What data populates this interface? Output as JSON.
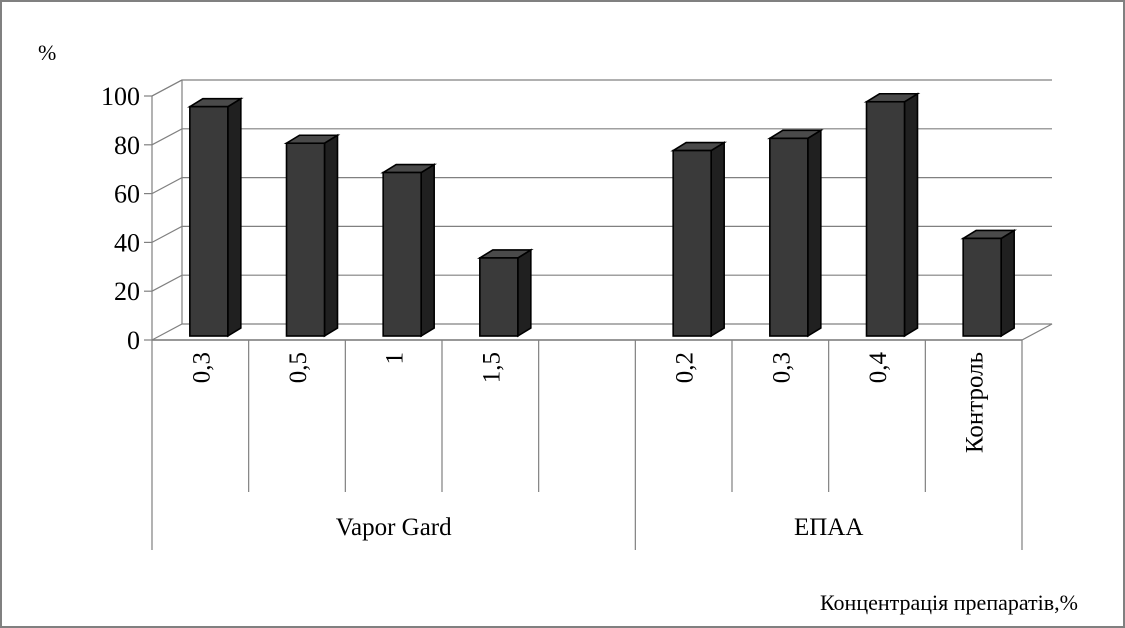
{
  "chart_data": {
    "type": "bar",
    "ylabel": "%",
    "xlabel": "Концентрація препаратів,%",
    "ylim": [
      0,
      100
    ],
    "yticks": [
      "0",
      "20",
      "40",
      "60",
      "80",
      "100"
    ],
    "grid": true,
    "categories": [
      "0,3",
      "0,5",
      "1",
      "1,5",
      "",
      "0,2",
      "0,3",
      "0,4",
      "Контроль"
    ],
    "values": [
      94,
      79,
      67,
      32,
      null,
      76,
      81,
      96,
      40
    ],
    "groups": [
      {
        "label": "Vapor Gard",
        "span": [
          0,
          4
        ]
      },
      {
        "label": "ЕПАА",
        "span": [
          5,
          8
        ]
      }
    ],
    "colors": {
      "bar": "#3a3a3a",
      "bar_side": "#202020",
      "grid": "#808080"
    }
  }
}
